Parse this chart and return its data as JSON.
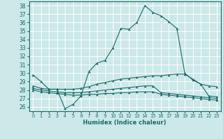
{
  "xlabel": "Humidex (Indice chaleur)",
  "xlim": [
    -0.5,
    23.5
  ],
  "ylim": [
    25.5,
    38.5
  ],
  "yticks": [
    26,
    27,
    28,
    29,
    30,
    31,
    32,
    33,
    34,
    35,
    36,
    37,
    38
  ],
  "xticks": [
    0,
    1,
    2,
    3,
    4,
    5,
    6,
    7,
    8,
    9,
    10,
    11,
    12,
    13,
    14,
    15,
    16,
    17,
    18,
    19,
    20,
    21,
    22,
    23
  ],
  "background_color": "#cce8e8",
  "grid_color": "#ffffff",
  "line_color": "#1a6b6b",
  "curve1_y": [
    29.8,
    29.0,
    28.1,
    28.1,
    25.8,
    26.3,
    27.3,
    30.2,
    31.2,
    31.5,
    33.0,
    35.3,
    35.2,
    36.0,
    38.0,
    37.2,
    36.8,
    36.1,
    35.3,
    30.0,
    29.2,
    28.7,
    27.3,
    27.2
  ],
  "curve2_y": [
    28.5,
    28.2,
    28.1,
    28.1,
    28.1,
    28.1,
    28.2,
    28.4,
    28.7,
    28.9,
    29.1,
    29.3,
    29.4,
    29.5,
    29.6,
    29.7,
    29.7,
    29.8,
    29.9,
    29.9,
    29.3,
    28.7,
    28.5,
    28.4
  ],
  "curve3_y": [
    28.2,
    28.0,
    27.9,
    27.8,
    27.7,
    27.7,
    27.7,
    27.8,
    27.9,
    28.0,
    28.1,
    28.2,
    28.3,
    28.4,
    28.5,
    28.5,
    27.7,
    27.6,
    27.5,
    27.4,
    27.3,
    27.2,
    27.1,
    27.0
  ],
  "curve4_y": [
    28.0,
    27.8,
    27.7,
    27.6,
    27.5,
    27.4,
    27.4,
    27.5,
    27.5,
    27.6,
    27.6,
    27.7,
    27.7,
    27.8,
    27.8,
    27.8,
    27.5,
    27.4,
    27.3,
    27.2,
    27.1,
    27.0,
    26.9,
    26.8
  ]
}
